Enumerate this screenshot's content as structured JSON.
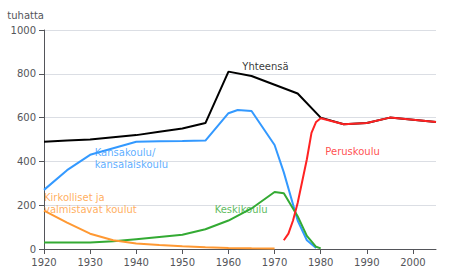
{
  "chart_data": {
    "type": "line",
    "ylabel": "tuhatta",
    "xlim": [
      1920,
      2005
    ],
    "ylim": [
      0,
      1000
    ],
    "xticks": [
      1920,
      1930,
      1940,
      1950,
      1960,
      1970,
      1980,
      1990,
      2000
    ],
    "yticks": [
      0,
      200,
      400,
      600,
      800,
      1000
    ],
    "grid": true,
    "series": [
      {
        "color": "#000000",
        "x": [
          1920,
          1925,
          1930,
          1935,
          1940,
          1945,
          1950,
          1955,
          1960,
          1965,
          1970,
          1975,
          1980,
          1985,
          1990,
          1995,
          2000,
          2005
        ],
        "values": [
          490,
          495,
          500,
          510,
          520,
          535,
          550,
          575,
          810,
          790,
          750,
          710,
          600,
          570,
          575,
          600,
          590,
          580
        ]
      },
      {
        "color": "#3399ff",
        "x": [
          1920,
          1925,
          1930,
          1935,
          1940,
          1945,
          1950,
          1955,
          1960,
          1962,
          1965,
          1970,
          1972,
          1975,
          1977,
          1979
        ],
        "values": [
          270,
          360,
          430,
          460,
          490,
          492,
          493,
          495,
          620,
          635,
          630,
          475,
          350,
          130,
          40,
          5
        ]
      },
      {
        "color": "#33aa33",
        "x": [
          1920,
          1925,
          1930,
          1935,
          1940,
          1945,
          1950,
          1955,
          1960,
          1965,
          1970,
          1972,
          1975,
          1977,
          1979,
          1980
        ],
        "values": [
          30,
          30,
          30,
          35,
          45,
          55,
          65,
          90,
          130,
          185,
          260,
          255,
          150,
          60,
          10,
          3
        ]
      },
      {
        "color": "#ff2222",
        "x": [
          1972,
          1973,
          1974,
          1975,
          1977,
          1978,
          1979,
          1980,
          1985,
          1990,
          1995,
          2000,
          2005
        ],
        "values": [
          40,
          70,
          130,
          210,
          410,
          530,
          580,
          597,
          570,
          575,
          600,
          590,
          580
        ]
      },
      {
        "color": "#ff9933",
        "x": [
          1920,
          1925,
          1930,
          1935,
          1940,
          1945,
          1950,
          1955,
          1960,
          1965,
          1970
        ],
        "values": [
          175,
          120,
          70,
          40,
          25,
          18,
          12,
          8,
          5,
          3,
          2
        ]
      }
    ],
    "annotations": [
      {
        "text": "Yhteensä",
        "x": 1963,
        "y": 835,
        "color": "#000000"
      },
      {
        "text": "Kansakoulu/\nkansalaiskoulu",
        "x": 1931,
        "y": 415,
        "color": "#3399ff"
      },
      {
        "text": "Keskikoulu",
        "x": 1957,
        "y": 182,
        "color": "#33aa33"
      },
      {
        "text": "Peruskoulu",
        "x": 1981,
        "y": 445,
        "color": "#ff2222"
      },
      {
        "text": "Kirkolliset ja\nvalmistavat koulut",
        "x": 1920,
        "y": 210,
        "color": "#ff9933"
      }
    ]
  }
}
